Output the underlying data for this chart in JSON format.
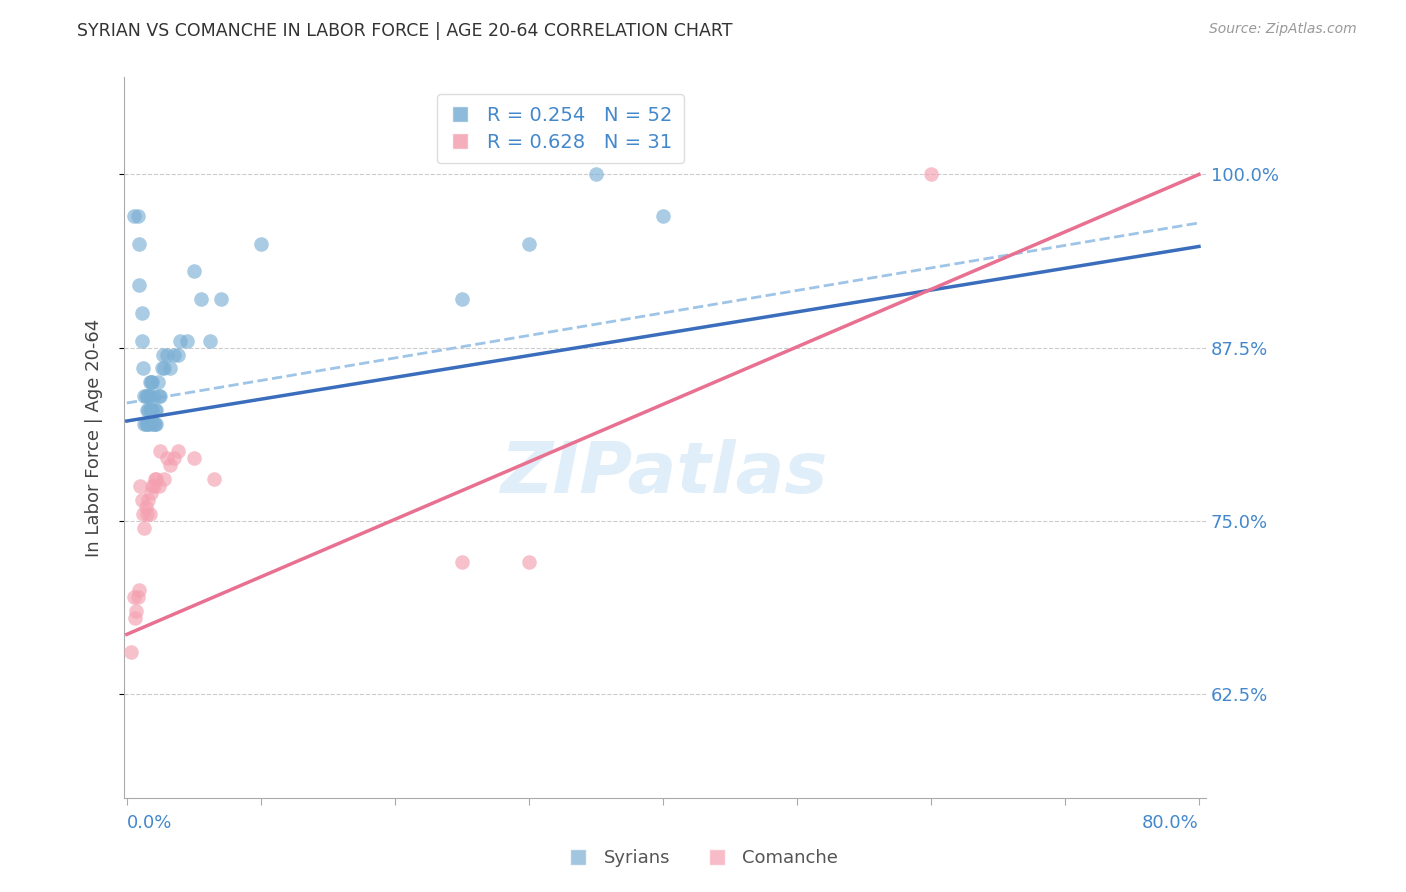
{
  "title": "SYRIAN VS COMANCHE IN LABOR FORCE | AGE 20-64 CORRELATION CHART",
  "source": "Source: ZipAtlas.com",
  "ylabel": "In Labor Force | Age 20-64",
  "yticks": [
    0.625,
    0.75,
    0.875,
    1.0
  ],
  "ytick_labels": [
    "62.5%",
    "75.0%",
    "87.5%",
    "100.0%"
  ],
  "xmin": 0.0,
  "xmax": 0.8,
  "ymin": 0.55,
  "ymax": 1.07,
  "legend_syrian_r": "R = 0.254",
  "legend_syrian_n": "N = 52",
  "legend_comanche_r": "R = 0.628",
  "legend_comanche_n": "N = 31",
  "syrian_color": "#7bafd4",
  "comanche_color": "#f4a0b0",
  "syrian_line_color": "#3b6dbd",
  "comanche_line_color": "#e87090",
  "dashed_line_color": "#9ec4e8",
  "background_color": "#ffffff",
  "grid_color": "#cccccc",
  "axis_label_color": "#4488cc",
  "title_color": "#333333",
  "syrian_x": [
    0.005,
    0.008,
    0.009,
    0.009,
    0.011,
    0.011,
    0.012,
    0.013,
    0.013,
    0.014,
    0.014,
    0.015,
    0.015,
    0.015,
    0.016,
    0.016,
    0.016,
    0.017,
    0.017,
    0.017,
    0.018,
    0.018,
    0.018,
    0.019,
    0.019,
    0.02,
    0.02,
    0.021,
    0.021,
    0.022,
    0.022,
    0.023,
    0.024,
    0.025,
    0.026,
    0.027,
    0.028,
    0.03,
    0.032,
    0.035,
    0.038,
    0.04,
    0.045,
    0.05,
    0.055,
    0.062,
    0.07,
    0.1,
    0.25,
    0.3,
    0.35,
    0.4
  ],
  "syrian_y": [
    0.97,
    0.97,
    0.95,
    0.92,
    0.9,
    0.88,
    0.86,
    0.84,
    0.82,
    0.84,
    0.82,
    0.84,
    0.83,
    0.82,
    0.84,
    0.83,
    0.82,
    0.85,
    0.84,
    0.83,
    0.85,
    0.83,
    0.82,
    0.85,
    0.83,
    0.84,
    0.82,
    0.83,
    0.82,
    0.83,
    0.82,
    0.85,
    0.84,
    0.84,
    0.86,
    0.87,
    0.86,
    0.87,
    0.86,
    0.87,
    0.87,
    0.88,
    0.88,
    0.93,
    0.91,
    0.88,
    0.91,
    0.95,
    0.91,
    0.95,
    1.0,
    0.97
  ],
  "comanche_x": [
    0.003,
    0.005,
    0.006,
    0.007,
    0.008,
    0.009,
    0.01,
    0.011,
    0.012,
    0.013,
    0.014,
    0.015,
    0.016,
    0.017,
    0.018,
    0.019,
    0.02,
    0.021,
    0.022,
    0.024,
    0.025,
    0.028,
    0.03,
    0.032,
    0.035,
    0.038,
    0.05,
    0.065,
    0.25,
    0.3,
    0.6
  ],
  "comanche_y": [
    0.655,
    0.695,
    0.68,
    0.685,
    0.695,
    0.7,
    0.775,
    0.765,
    0.755,
    0.745,
    0.76,
    0.755,
    0.765,
    0.755,
    0.77,
    0.775,
    0.775,
    0.78,
    0.78,
    0.775,
    0.8,
    0.78,
    0.795,
    0.79,
    0.795,
    0.8,
    0.795,
    0.78,
    0.72,
    0.72,
    1.0
  ],
  "syrian_line": [
    0.0,
    0.8,
    0.822,
    0.948
  ],
  "comanche_line": [
    0.0,
    0.8,
    0.668,
    1.0
  ],
  "dashed_line": [
    0.0,
    0.8,
    0.835,
    0.965
  ]
}
